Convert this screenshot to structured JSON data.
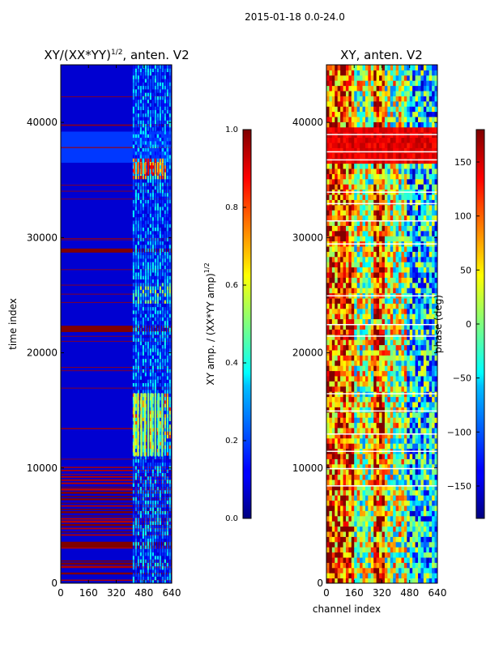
{
  "chart_data": [
    {
      "type": "heatmap",
      "suptitle": "2015-01-18 0.0-24.0",
      "title_main": "XY/(XX*YY)",
      "title_sup": "1/2",
      "title_tail": ", anten. V2",
      "ylabel": "time index",
      "xlabel": "",
      "xlim": [
        0,
        640
      ],
      "ylim": [
        0,
        45000
      ],
      "xticks": [
        0,
        160,
        320,
        480,
        640
      ],
      "yticks": [
        0,
        10000,
        20000,
        30000,
        40000
      ],
      "colorbar": {
        "label_main": "XY amp. / (XX*YY amp)",
        "label_sup": "1/2",
        "range": [
          0.0,
          1.0
        ],
        "ticks": [
          "0.0",
          "0.2",
          "0.4",
          "0.6",
          "0.8",
          "1.0"
        ],
        "tick_values": [
          0.0,
          0.2,
          0.4,
          0.6,
          0.8,
          1.0
        ],
        "colormap": "jet"
      },
      "background_value": 0.08,
      "saturated_rows": [
        22000,
        21800,
        3100,
        3250,
        28700
      ],
      "strong_blocks": [
        {
          "x0": 420,
          "x1": 600,
          "y0": 35500,
          "y1": 36500,
          "value": 0.85
        },
        {
          "x0": 420,
          "x1": 600,
          "y0": 11000,
          "y1": 16500,
          "value": 0.55
        }
      ]
    },
    {
      "type": "heatmap",
      "title": "XY, anten. V2",
      "xlabel": "channel index",
      "ylabel": "",
      "xlim": [
        0,
        640
      ],
      "ylim": [
        0,
        45000
      ],
      "xticks": [
        0,
        160,
        320,
        480,
        640
      ],
      "yticks": [
        0,
        10000,
        20000,
        30000,
        40000
      ],
      "colorbar": {
        "label": "phase (deg)",
        "range": [
          -180,
          180
        ],
        "ticks": [
          "150",
          "100",
          "50",
          "0",
          "−50",
          "−100",
          "−150"
        ],
        "tick_values": [
          150,
          100,
          50,
          0,
          -50,
          -100,
          -150
        ],
        "colormap": "jet"
      },
      "white_rows": [
        39000,
        37500,
        36800,
        34000,
        33000,
        31500,
        29500,
        25000,
        22500,
        21500,
        16500,
        15000,
        13000,
        11500,
        10000,
        8500
      ]
    }
  ]
}
